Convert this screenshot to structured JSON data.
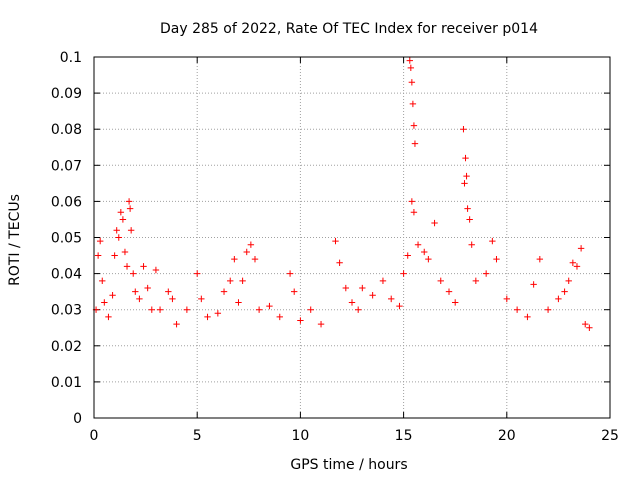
{
  "chart_data": {
    "type": "scatter",
    "title": "Day 285 of 2022, Rate Of TEC Index for receiver p014",
    "xlabel": "GPS time / hours",
    "ylabel": "ROTI / TECUs",
    "xlim": [
      0,
      25
    ],
    "ylim": [
      0,
      0.1
    ],
    "xticks": [
      0,
      5,
      10,
      15,
      20,
      25
    ],
    "xtick_labels": [
      "0",
      "5",
      "10",
      "15",
      "20",
      "25"
    ],
    "yticks": [
      0,
      0.01,
      0.02,
      0.03,
      0.04,
      0.05,
      0.06,
      0.07,
      0.08,
      0.09,
      0.1
    ],
    "ytick_labels": [
      "0",
      "0.01",
      "0.02",
      "0.03",
      "0.04",
      "0.05",
      "0.06",
      "0.07",
      "0.08",
      "0.09",
      "0.1"
    ],
    "grid": true,
    "marker": "+",
    "series": [
      {
        "name": "p014",
        "color": "#ff0000",
        "points": [
          [
            0.1,
            0.03
          ],
          [
            0.2,
            0.045
          ],
          [
            0.3,
            0.049
          ],
          [
            0.4,
            0.038
          ],
          [
            0.5,
            0.032
          ],
          [
            0.7,
            0.028
          ],
          [
            0.9,
            0.034
          ],
          [
            1.0,
            0.045
          ],
          [
            1.1,
            0.052
          ],
          [
            1.2,
            0.05
          ],
          [
            1.3,
            0.057
          ],
          [
            1.4,
            0.055
          ],
          [
            1.5,
            0.046
          ],
          [
            1.6,
            0.042
          ],
          [
            1.7,
            0.06
          ],
          [
            1.75,
            0.058
          ],
          [
            1.8,
            0.052
          ],
          [
            1.9,
            0.04
          ],
          [
            2.0,
            0.035
          ],
          [
            2.2,
            0.033
          ],
          [
            2.4,
            0.042
          ],
          [
            2.6,
            0.036
          ],
          [
            2.8,
            0.03
          ],
          [
            3.0,
            0.041
          ],
          [
            3.2,
            0.03
          ],
          [
            3.6,
            0.035
          ],
          [
            3.8,
            0.033
          ],
          [
            4.0,
            0.026
          ],
          [
            4.5,
            0.03
          ],
          [
            5.0,
            0.04
          ],
          [
            5.2,
            0.033
          ],
          [
            5.5,
            0.028
          ],
          [
            6.0,
            0.029
          ],
          [
            6.3,
            0.035
          ],
          [
            6.6,
            0.038
          ],
          [
            6.8,
            0.044
          ],
          [
            7.0,
            0.032
          ],
          [
            7.2,
            0.038
          ],
          [
            7.4,
            0.046
          ],
          [
            7.6,
            0.048
          ],
          [
            7.8,
            0.044
          ],
          [
            8.0,
            0.03
          ],
          [
            8.5,
            0.031
          ],
          [
            9.0,
            0.028
          ],
          [
            9.5,
            0.04
          ],
          [
            9.7,
            0.035
          ],
          [
            10.0,
            0.027
          ],
          [
            10.5,
            0.03
          ],
          [
            11.0,
            0.026
          ],
          [
            11.7,
            0.049
          ],
          [
            11.9,
            0.043
          ],
          [
            12.2,
            0.036
          ],
          [
            12.5,
            0.032
          ],
          [
            12.8,
            0.03
          ],
          [
            13.0,
            0.036
          ],
          [
            13.5,
            0.034
          ],
          [
            14.0,
            0.038
          ],
          [
            14.4,
            0.033
          ],
          [
            14.8,
            0.031
          ],
          [
            15.0,
            0.04
          ],
          [
            15.2,
            0.045
          ],
          [
            15.3,
            0.099
          ],
          [
            15.35,
            0.097
          ],
          [
            15.4,
            0.093
          ],
          [
            15.45,
            0.087
          ],
          [
            15.5,
            0.081
          ],
          [
            15.55,
            0.076
          ],
          [
            15.4,
            0.06
          ],
          [
            15.5,
            0.057
          ],
          [
            15.7,
            0.048
          ],
          [
            16.0,
            0.046
          ],
          [
            16.2,
            0.044
          ],
          [
            16.5,
            0.054
          ],
          [
            16.8,
            0.038
          ],
          [
            17.2,
            0.035
          ],
          [
            17.5,
            0.032
          ],
          [
            17.9,
            0.08
          ],
          [
            18.0,
            0.072
          ],
          [
            18.05,
            0.067
          ],
          [
            17.95,
            0.065
          ],
          [
            18.1,
            0.058
          ],
          [
            18.2,
            0.055
          ],
          [
            18.3,
            0.048
          ],
          [
            18.5,
            0.038
          ],
          [
            19.0,
            0.04
          ],
          [
            19.3,
            0.049
          ],
          [
            19.5,
            0.044
          ],
          [
            20.0,
            0.033
          ],
          [
            20.5,
            0.03
          ],
          [
            21.0,
            0.028
          ],
          [
            21.3,
            0.037
          ],
          [
            21.6,
            0.044
          ],
          [
            22.0,
            0.03
          ],
          [
            22.5,
            0.033
          ],
          [
            22.8,
            0.035
          ],
          [
            23.0,
            0.038
          ],
          [
            23.2,
            0.043
          ],
          [
            23.4,
            0.042
          ],
          [
            23.6,
            0.047
          ],
          [
            23.8,
            0.026
          ],
          [
            24.0,
            0.025
          ]
        ]
      }
    ]
  }
}
